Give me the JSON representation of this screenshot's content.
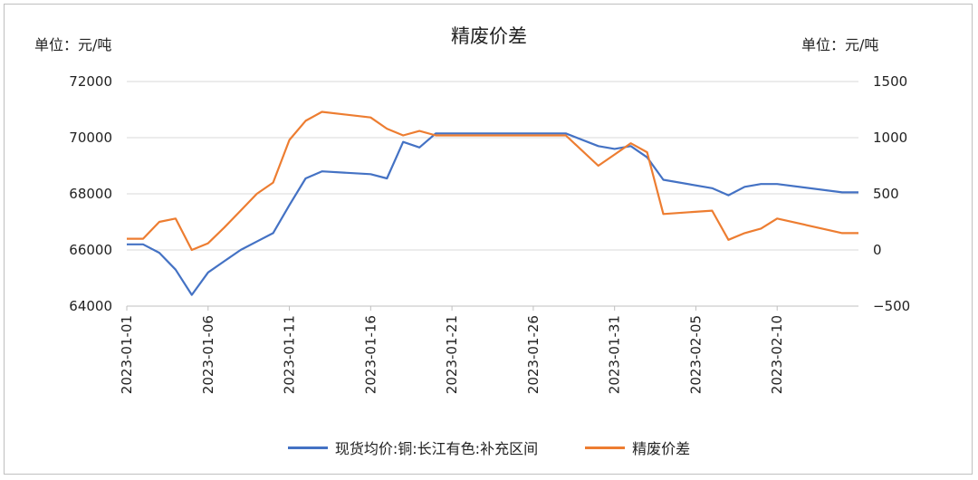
{
  "chart_data": {
    "type": "line",
    "title": "精废价差",
    "ylabel_left": "单位：元/吨",
    "ylabel_right": "单位：元/吨",
    "ylim_left": [
      64000,
      72000
    ],
    "yticks_left": [
      64000,
      66000,
      68000,
      70000,
      72000
    ],
    "ylim_right": [
      -500,
      1500
    ],
    "yticks_right": [
      -500,
      0,
      500,
      1000,
      1500
    ],
    "xlim": [
      "2023-01-01",
      "2023-02-15"
    ],
    "xtick_labels": [
      "2023-01-01",
      "2023-01-06",
      "2023-01-11",
      "2023-01-16",
      "2023-01-21",
      "2023-01-26",
      "2023-01-31",
      "2023-02-05",
      "2023-02-10"
    ],
    "grid": "horizontal",
    "legend_position": "bottom",
    "series": [
      {
        "name": "现货均价:铜:长江有色:补充区间",
        "axis": "left",
        "color": "#4472C4",
        "x": [
          "2023-01-01",
          "2023-01-02",
          "2023-01-03",
          "2023-01-04",
          "2023-01-05",
          "2023-01-06",
          "2023-01-07",
          "2023-01-08",
          "2023-01-09",
          "2023-01-10",
          "2023-01-11",
          "2023-01-12",
          "2023-01-13",
          "2023-01-16",
          "2023-01-17",
          "2023-01-18",
          "2023-01-19",
          "2023-01-20",
          "2023-01-28",
          "2023-01-30",
          "2023-01-31",
          "2023-02-01",
          "2023-02-02",
          "2023-02-03",
          "2023-02-06",
          "2023-02-07",
          "2023-02-08",
          "2023-02-09",
          "2023-02-10",
          "2023-02-14",
          "2023-02-15"
        ],
        "values": [
          66200,
          66200,
          65900,
          65300,
          64400,
          65200,
          65600,
          66000,
          66300,
          66600,
          67600,
          68550,
          68800,
          68700,
          68550,
          69850,
          69650,
          70150,
          70150,
          69700,
          69600,
          69700,
          69300,
          68500,
          68200,
          67950,
          68250,
          68350,
          68350,
          68050,
          68050
        ]
      },
      {
        "name": "精废价差",
        "axis": "right",
        "color": "#ED7D31",
        "x": [
          "2023-01-01",
          "2023-01-02",
          "2023-01-03",
          "2023-01-04",
          "2023-01-05",
          "2023-01-06",
          "2023-01-07",
          "2023-01-08",
          "2023-01-09",
          "2023-01-10",
          "2023-01-11",
          "2023-01-12",
          "2023-01-13",
          "2023-01-16",
          "2023-01-17",
          "2023-01-18",
          "2023-01-19",
          "2023-01-20",
          "2023-01-28",
          "2023-01-30",
          "2023-01-31",
          "2023-02-01",
          "2023-02-02",
          "2023-02-03",
          "2023-02-06",
          "2023-02-07",
          "2023-02-08",
          "2023-02-09",
          "2023-02-10",
          "2023-02-14",
          "2023-02-15"
        ],
        "values": [
          100,
          100,
          250,
          280,
          0,
          60,
          200,
          350,
          500,
          600,
          980,
          1150,
          1230,
          1180,
          1080,
          1020,
          1060,
          1020,
          1020,
          750,
          850,
          950,
          870,
          320,
          350,
          90,
          150,
          190,
          280,
          150,
          150
        ]
      }
    ]
  }
}
